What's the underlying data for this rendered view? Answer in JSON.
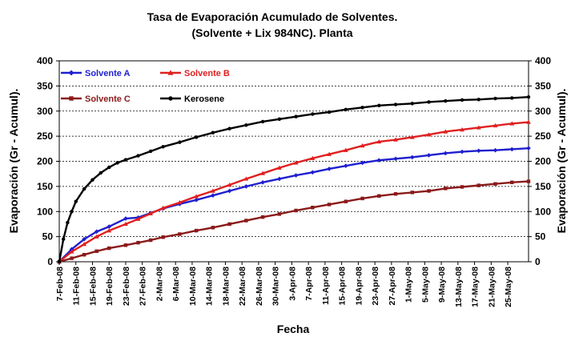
{
  "chart_data": {
    "type": "line",
    "title_line1": "Tasa de Evaporación Acumulado de Solventes.",
    "title_line2": "(Solvente + Lix 984NC). Planta",
    "xlabel": "Fecha",
    "ylabel_left": "Evaporación (Gr - Acumul).",
    "ylabel_right": "Evaporación (Gr - Acumul).",
    "ylim": [
      0,
      400
    ],
    "yticks": [
      "0",
      "50",
      "100",
      "150",
      "200",
      "250",
      "300",
      "350",
      "400"
    ],
    "grid": "horizontal",
    "legend_position": "top-left",
    "x_start": "7-Feb-08",
    "x_end": "30-May-08",
    "x_tick_labels": [
      "7-Feb-08",
      "11-Feb-08",
      "15-Feb-08",
      "19-Feb-08",
      "23-Feb-08",
      "27-Feb-08",
      "2-Mar-08",
      "6-Mar-08",
      "10-Mar-08",
      "14-Mar-08",
      "18-Mar-08",
      "22-Mar-08",
      "26-Mar-08",
      "30-Mar-08",
      "3-Apr-08",
      "7-Apr-08",
      "11-Apr-08",
      "15-Apr-08",
      "19-Apr-08",
      "23-Apr-08",
      "27-Apr-08",
      "1-May-08",
      "5-May-08",
      "9-May-08",
      "13-May-08",
      "17-May-08",
      "21-May-08",
      "25-May-08"
    ],
    "series": [
      {
        "name": "Solvente A",
        "color": "#1f1fd0",
        "marker": "diamond",
        "points": [
          [
            "7-Feb-08",
            0
          ],
          [
            "10-Feb-08",
            25
          ],
          [
            "13-Feb-08",
            45
          ],
          [
            "16-Feb-08",
            60
          ],
          [
            "19-Feb-08",
            70
          ],
          [
            "23-Feb-08",
            86
          ],
          [
            "26-Feb-08",
            88
          ],
          [
            "29-Feb-08",
            97
          ],
          [
            "3-Mar-08",
            106
          ],
          [
            "7-Mar-08",
            115
          ],
          [
            "11-Mar-08",
            123
          ],
          [
            "15-Mar-08",
            132
          ],
          [
            "19-Mar-08",
            141
          ],
          [
            "23-Mar-08",
            150
          ],
          [
            "27-Mar-08",
            158
          ],
          [
            "31-Mar-08",
            165
          ],
          [
            "4-Apr-08",
            172
          ],
          [
            "8-Apr-08",
            178
          ],
          [
            "12-Apr-08",
            185
          ],
          [
            "16-Apr-08",
            191
          ],
          [
            "20-Apr-08",
            197
          ],
          [
            "24-Apr-08",
            202
          ],
          [
            "28-Apr-08",
            205
          ],
          [
            "2-May-08",
            208
          ],
          [
            "6-May-08",
            212
          ],
          [
            "10-May-08",
            216
          ],
          [
            "14-May-08",
            219
          ],
          [
            "18-May-08",
            221
          ],
          [
            "22-May-08",
            222
          ],
          [
            "26-May-08",
            224
          ],
          [
            "30-May-08",
            226
          ]
        ]
      },
      {
        "name": "Solvente B",
        "color": "#e02020",
        "marker": "triangle",
        "points": [
          [
            "7-Feb-08",
            0
          ],
          [
            "10-Feb-08",
            20
          ],
          [
            "13-Feb-08",
            35
          ],
          [
            "16-Feb-08",
            50
          ],
          [
            "19-Feb-08",
            62
          ],
          [
            "23-Feb-08",
            75
          ],
          [
            "26-Feb-08",
            85
          ],
          [
            "29-Feb-08",
            96
          ],
          [
            "3-Mar-08",
            107
          ],
          [
            "7-Mar-08",
            118
          ],
          [
            "11-Mar-08",
            130
          ],
          [
            "15-Mar-08",
            141
          ],
          [
            "19-Mar-08",
            153
          ],
          [
            "23-Mar-08",
            165
          ],
          [
            "27-Mar-08",
            176
          ],
          [
            "31-Mar-08",
            187
          ],
          [
            "4-Apr-08",
            197
          ],
          [
            "8-Apr-08",
            206
          ],
          [
            "12-Apr-08",
            214
          ],
          [
            "16-Apr-08",
            222
          ],
          [
            "20-Apr-08",
            231
          ],
          [
            "24-Apr-08",
            239
          ],
          [
            "28-Apr-08",
            243
          ],
          [
            "2-May-08",
            248
          ],
          [
            "6-May-08",
            253
          ],
          [
            "10-May-08",
            259
          ],
          [
            "14-May-08",
            263
          ],
          [
            "18-May-08",
            267
          ],
          [
            "22-May-08",
            271
          ],
          [
            "26-May-08",
            275
          ],
          [
            "30-May-08",
            278
          ]
        ]
      },
      {
        "name": "Solvente C",
        "color": "#8b1a1a",
        "marker": "square",
        "points": [
          [
            "7-Feb-08",
            0
          ],
          [
            "10-Feb-08",
            7
          ],
          [
            "13-Feb-08",
            14
          ],
          [
            "16-Feb-08",
            21
          ],
          [
            "19-Feb-08",
            27
          ],
          [
            "23-Feb-08",
            33
          ],
          [
            "26-Feb-08",
            38
          ],
          [
            "29-Feb-08",
            43
          ],
          [
            "3-Mar-08",
            49
          ],
          [
            "7-Mar-08",
            55
          ],
          [
            "11-Mar-08",
            62
          ],
          [
            "15-Mar-08",
            68
          ],
          [
            "19-Mar-08",
            75
          ],
          [
            "23-Mar-08",
            82
          ],
          [
            "27-Mar-08",
            89
          ],
          [
            "31-Mar-08",
            95
          ],
          [
            "4-Apr-08",
            102
          ],
          [
            "8-Apr-08",
            108
          ],
          [
            "12-Apr-08",
            114
          ],
          [
            "16-Apr-08",
            120
          ],
          [
            "20-Apr-08",
            126
          ],
          [
            "24-Apr-08",
            131
          ],
          [
            "28-Apr-08",
            135
          ],
          [
            "2-May-08",
            138
          ],
          [
            "6-May-08",
            141
          ],
          [
            "10-May-08",
            146
          ],
          [
            "14-May-08",
            149
          ],
          [
            "18-May-08",
            152
          ],
          [
            "22-May-08",
            155
          ],
          [
            "26-May-08",
            158
          ],
          [
            "30-May-08",
            160
          ]
        ]
      },
      {
        "name": "Kerosene",
        "color": "#000000",
        "marker": "circle",
        "points": [
          [
            "7-Feb-08",
            0
          ],
          [
            "8-Feb-08",
            45
          ],
          [
            "9-Feb-08",
            78
          ],
          [
            "10-Feb-08",
            100
          ],
          [
            "11-Feb-08",
            120
          ],
          [
            "13-Feb-08",
            145
          ],
          [
            "15-Feb-08",
            163
          ],
          [
            "17-Feb-08",
            177
          ],
          [
            "19-Feb-08",
            188
          ],
          [
            "21-Feb-08",
            197
          ],
          [
            "23-Feb-08",
            203
          ],
          [
            "26-Feb-08",
            211
          ],
          [
            "29-Feb-08",
            220
          ],
          [
            "3-Mar-08",
            229
          ],
          [
            "7-Mar-08",
            238
          ],
          [
            "11-Mar-08",
            248
          ],
          [
            "15-Mar-08",
            257
          ],
          [
            "19-Mar-08",
            265
          ],
          [
            "23-Mar-08",
            272
          ],
          [
            "27-Mar-08",
            279
          ],
          [
            "31-Mar-08",
            284
          ],
          [
            "4-Apr-08",
            289
          ],
          [
            "8-Apr-08",
            294
          ],
          [
            "12-Apr-08",
            298
          ],
          [
            "16-Apr-08",
            303
          ],
          [
            "20-Apr-08",
            307
          ],
          [
            "24-Apr-08",
            311
          ],
          [
            "28-Apr-08",
            313
          ],
          [
            "2-May-08",
            315
          ],
          [
            "6-May-08",
            318
          ],
          [
            "10-May-08",
            320
          ],
          [
            "14-May-08",
            322
          ],
          [
            "18-May-08",
            323
          ],
          [
            "22-May-08",
            325
          ],
          [
            "26-May-08",
            326
          ],
          [
            "30-May-08",
            328
          ]
        ]
      }
    ]
  }
}
